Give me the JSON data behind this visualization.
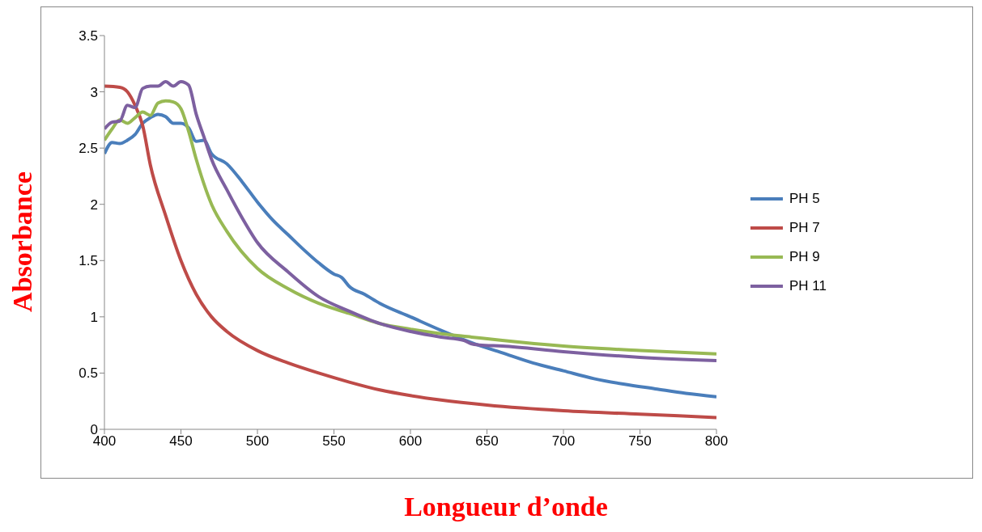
{
  "chart_data": {
    "type": "line",
    "xlabel": "Longueur d’onde",
    "ylabel": "Absorbance",
    "xlim": [
      400,
      800
    ],
    "xticks": [
      400,
      450,
      500,
      550,
      600,
      650,
      700,
      750,
      800
    ],
    "ylim": [
      0,
      3.5
    ],
    "yticks": [
      0,
      0.5,
      1,
      1.5,
      2,
      2.5,
      3,
      3.5
    ],
    "grid": false,
    "legend": "right",
    "marker": "none",
    "line_style": "solid",
    "series": [
      {
        "name": "PH 5",
        "color": "#4a7ebb",
        "x": [
          400,
          405,
          410,
          415,
          420,
          425,
          430,
          435,
          440,
          445,
          450,
          455,
          460,
          465,
          470,
          480,
          490,
          500,
          510,
          520,
          530,
          540,
          550,
          555,
          560,
          570,
          580,
          600,
          620,
          640,
          660,
          680,
          700,
          720,
          740,
          760,
          780,
          800
        ],
        "values": [
          2.45,
          2.55,
          2.54,
          2.57,
          2.62,
          2.72,
          2.77,
          2.8,
          2.78,
          2.72,
          2.72,
          2.68,
          2.56,
          2.57,
          2.45,
          2.36,
          2.2,
          2.02,
          1.86,
          1.73,
          1.6,
          1.48,
          1.38,
          1.35,
          1.27,
          1.2,
          1.12,
          1.0,
          0.88,
          0.77,
          0.68,
          0.59,
          0.52,
          0.45,
          0.4,
          0.36,
          0.32,
          0.29
        ]
      },
      {
        "name": "PH 7",
        "color": "#be4b48",
        "x": [
          400,
          410,
          415,
          420,
          425,
          430,
          440,
          450,
          460,
          470,
          480,
          500,
          520,
          540,
          560,
          580,
          600,
          620,
          650,
          700,
          750,
          800
        ],
        "values": [
          3.05,
          3.04,
          3.0,
          2.88,
          2.7,
          2.35,
          1.9,
          1.5,
          1.2,
          1.0,
          0.87,
          0.7,
          0.59,
          0.5,
          0.42,
          0.35,
          0.3,
          0.26,
          0.215,
          0.165,
          0.135,
          0.105
        ]
      },
      {
        "name": "PH 9",
        "color": "#98b954",
        "x": [
          400,
          405,
          410,
          415,
          420,
          425,
          430,
          435,
          440,
          445,
          450,
          455,
          460,
          470,
          480,
          500,
          520,
          540,
          560,
          580,
          600,
          620,
          640,
          660,
          700,
          750,
          800
        ],
        "values": [
          2.57,
          2.67,
          2.75,
          2.72,
          2.77,
          2.82,
          2.79,
          2.9,
          2.92,
          2.91,
          2.85,
          2.65,
          2.4,
          2.0,
          1.76,
          1.43,
          1.25,
          1.12,
          1.03,
          0.94,
          0.89,
          0.85,
          0.82,
          0.79,
          0.74,
          0.7,
          0.67
        ]
      },
      {
        "name": "PH 11",
        "color": "#7d60a0",
        "x": [
          400,
          405,
          410,
          415,
          420,
          425,
          430,
          435,
          440,
          445,
          450,
          455,
          460,
          465,
          470,
          480,
          490,
          500,
          520,
          540,
          560,
          580,
          600,
          620,
          635,
          640,
          645,
          660,
          700,
          750,
          800
        ],
        "values": [
          2.67,
          2.73,
          2.74,
          2.88,
          2.86,
          3.03,
          3.05,
          3.05,
          3.09,
          3.05,
          3.09,
          3.06,
          2.8,
          2.6,
          2.4,
          2.13,
          1.88,
          1.66,
          1.4,
          1.18,
          1.05,
          0.94,
          0.87,
          0.82,
          0.79,
          0.76,
          0.75,
          0.74,
          0.69,
          0.64,
          0.61
        ]
      }
    ]
  }
}
